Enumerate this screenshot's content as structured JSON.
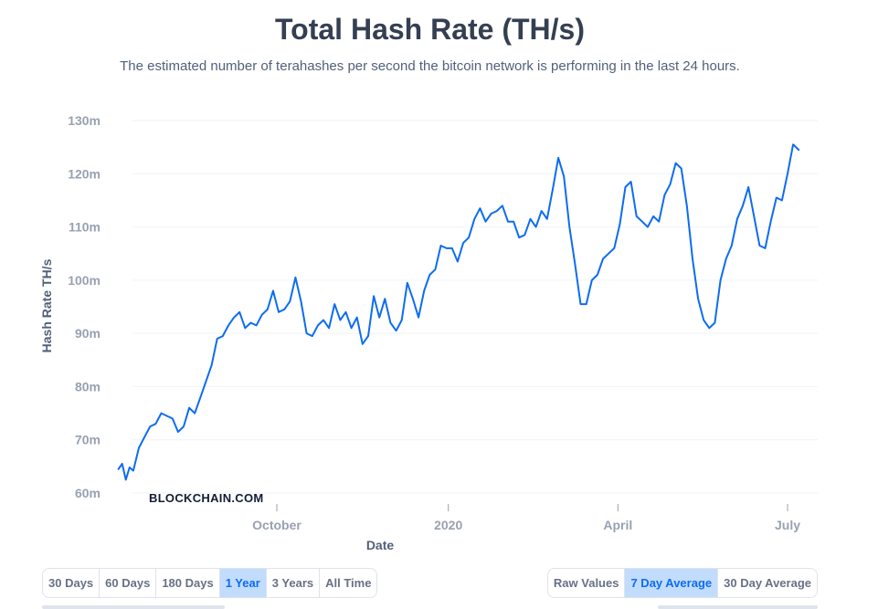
{
  "page": {
    "title": "Total Hash Rate (TH/s)",
    "subtitle": "The estimated number of terahashes per second the bitcoin network is performing in the last 24 hours.",
    "watermark": "BLOCKCHAIN.COM"
  },
  "controls": {
    "ranges": [
      {
        "label": "30 Days",
        "active": false
      },
      {
        "label": "60 Days",
        "active": false
      },
      {
        "label": "180 Days",
        "active": false
      },
      {
        "label": "1 Year",
        "active": true
      },
      {
        "label": "3 Years",
        "active": false
      },
      {
        "label": "All Time",
        "active": false
      }
    ],
    "modes": [
      {
        "label": "Raw Values",
        "active": false
      },
      {
        "label": "7 Day Average",
        "active": true
      },
      {
        "label": "30 Day Average",
        "active": false
      }
    ]
  },
  "colors": {
    "line": "#0c6cf2",
    "grid": "#f0f2f7",
    "active_button": "#c2dcfd"
  },
  "chart_data": {
    "type": "line",
    "title": "Total Hash Rate (TH/s)",
    "xlabel": "Date",
    "ylabel": "Hash Rate TH/s",
    "ylim": [
      60,
      130
    ],
    "y_ticks": [
      {
        "value": 60,
        "label": "60m"
      },
      {
        "value": 70,
        "label": "70m"
      },
      {
        "value": 80,
        "label": "80m"
      },
      {
        "value": 90,
        "label": "90m"
      },
      {
        "value": 100,
        "label": "100m"
      },
      {
        "value": 110,
        "label": "110m"
      },
      {
        "value": 120,
        "label": "120m"
      },
      {
        "value": 130,
        "label": "130m"
      }
    ],
    "xlim": [
      "2019-07-08",
      "2020-07-08"
    ],
    "x_ticks": [
      {
        "value": "2019-10-01",
        "label": "October"
      },
      {
        "value": "2020-01-01",
        "label": "2020"
      },
      {
        "value": "2020-04-01",
        "label": "April"
      },
      {
        "value": "2020-07-01",
        "label": "July"
      }
    ],
    "grid": true,
    "legend": "none",
    "series": [
      {
        "x": [
          "2019-07-08",
          "2019-07-10",
          "2019-07-12",
          "2019-07-14",
          "2019-07-16",
          "2019-07-19",
          "2019-07-22",
          "2019-07-25",
          "2019-07-28",
          "2019-07-31",
          "2019-08-03",
          "2019-08-06",
          "2019-08-09",
          "2019-08-12",
          "2019-08-15",
          "2019-08-18",
          "2019-08-21",
          "2019-08-24",
          "2019-08-27",
          "2019-08-30",
          "2019-09-02",
          "2019-09-05",
          "2019-09-08",
          "2019-09-11",
          "2019-09-14",
          "2019-09-17",
          "2019-09-20",
          "2019-09-23",
          "2019-09-26",
          "2019-09-29",
          "2019-10-02",
          "2019-10-05",
          "2019-10-08",
          "2019-10-11",
          "2019-10-14",
          "2019-10-17",
          "2019-10-20",
          "2019-10-23",
          "2019-10-26",
          "2019-10-29",
          "2019-11-01",
          "2019-11-04",
          "2019-11-07",
          "2019-11-10",
          "2019-11-13",
          "2019-11-16",
          "2019-11-19",
          "2019-11-22",
          "2019-11-25",
          "2019-11-28",
          "2019-12-01",
          "2019-12-04",
          "2019-12-07",
          "2019-12-10",
          "2019-12-13",
          "2019-12-16",
          "2019-12-19",
          "2019-12-22",
          "2019-12-25",
          "2019-12-28",
          "2019-12-31",
          "2020-01-03",
          "2020-01-06",
          "2020-01-09",
          "2020-01-12",
          "2020-01-15",
          "2020-01-18",
          "2020-01-21",
          "2020-01-24",
          "2020-01-27",
          "2020-01-30",
          "2020-02-02",
          "2020-02-05",
          "2020-02-08",
          "2020-02-11",
          "2020-02-14",
          "2020-02-17",
          "2020-02-20",
          "2020-02-23",
          "2020-02-26",
          "2020-02-29",
          "2020-03-03",
          "2020-03-06",
          "2020-03-09",
          "2020-03-12",
          "2020-03-15",
          "2020-03-18",
          "2020-03-21",
          "2020-03-24",
          "2020-03-27",
          "2020-03-30",
          "2020-04-02",
          "2020-04-05",
          "2020-04-08",
          "2020-04-11",
          "2020-04-14",
          "2020-04-17",
          "2020-04-20",
          "2020-04-23",
          "2020-04-26",
          "2020-04-29",
          "2020-05-02",
          "2020-05-05",
          "2020-05-08",
          "2020-05-11",
          "2020-05-14",
          "2020-05-17",
          "2020-05-20",
          "2020-05-23",
          "2020-05-26",
          "2020-05-29",
          "2020-06-01",
          "2020-06-04",
          "2020-06-07",
          "2020-06-10",
          "2020-06-13",
          "2020-06-16",
          "2020-06-19",
          "2020-06-22",
          "2020-06-25",
          "2020-06-28",
          "2020-07-01",
          "2020-07-04",
          "2020-07-07"
        ],
        "values": [
          64.5,
          65.5,
          62.5,
          64.8,
          64.2,
          68.5,
          70.5,
          72.5,
          73,
          75,
          74.5,
          74,
          71.5,
          72.5,
          76,
          75,
          78,
          81,
          84,
          89,
          89.5,
          91.5,
          93,
          94,
          91,
          92,
          91.5,
          93.5,
          94.5,
          98,
          94,
          94.5,
          96,
          100.5,
          96,
          90,
          89.5,
          91.5,
          92.5,
          91,
          95.5,
          92.5,
          94,
          91,
          93,
          88,
          89.5,
          97,
          93,
          96.5,
          92,
          90.5,
          92.5,
          99.5,
          96.5,
          93,
          98,
          101,
          102,
          106.5,
          106,
          106,
          103.5,
          107,
          108,
          111.5,
          113.5,
          111,
          112.5,
          113,
          114,
          111,
          111,
          108,
          108.5,
          111.5,
          110,
          113,
          111.5,
          117,
          123,
          119.5,
          110,
          103,
          95.5,
          95.5,
          100,
          101,
          104,
          105,
          106,
          110.5,
          117.5,
          118.5,
          112,
          111,
          110,
          112,
          111,
          116,
          118,
          122,
          121,
          114,
          104,
          96.5,
          92.5,
          91,
          92,
          100,
          104,
          106.5,
          111.5,
          114,
          117.5,
          112,
          106.5,
          106,
          111,
          115.5,
          115,
          120,
          125.5,
          124.5
        ]
      }
    ]
  }
}
